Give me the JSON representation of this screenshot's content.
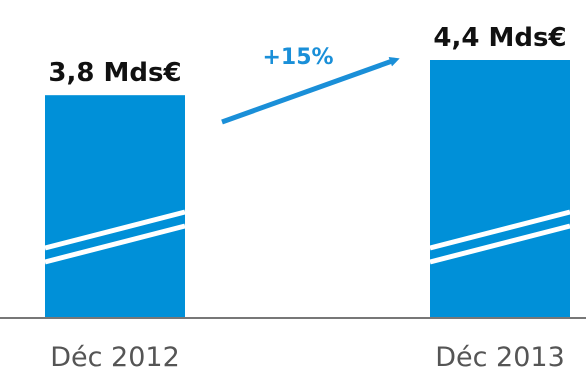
{
  "chart_data": {
    "type": "bar",
    "categories": [
      "Déc 2012",
      "Déc 2013"
    ],
    "values": [
      3.8,
      4.4
    ],
    "value_labels": [
      "3,8 Mds€",
      "4,4 Mds€"
    ],
    "annotations": [
      {
        "text": "+15%",
        "type": "growth-arrow",
        "from": "Déc 2012",
        "to": "Déc 2013"
      }
    ],
    "title": "",
    "xlabel": "",
    "ylabel": "",
    "ylim": [
      0,
      4.4
    ],
    "grid": false,
    "legend": "none",
    "colors": {
      "bar": "#0090D8",
      "arrow": "#1A8FD8",
      "axis": "#777777",
      "tick_text": "#555555",
      "value_text": "#111111"
    }
  }
}
